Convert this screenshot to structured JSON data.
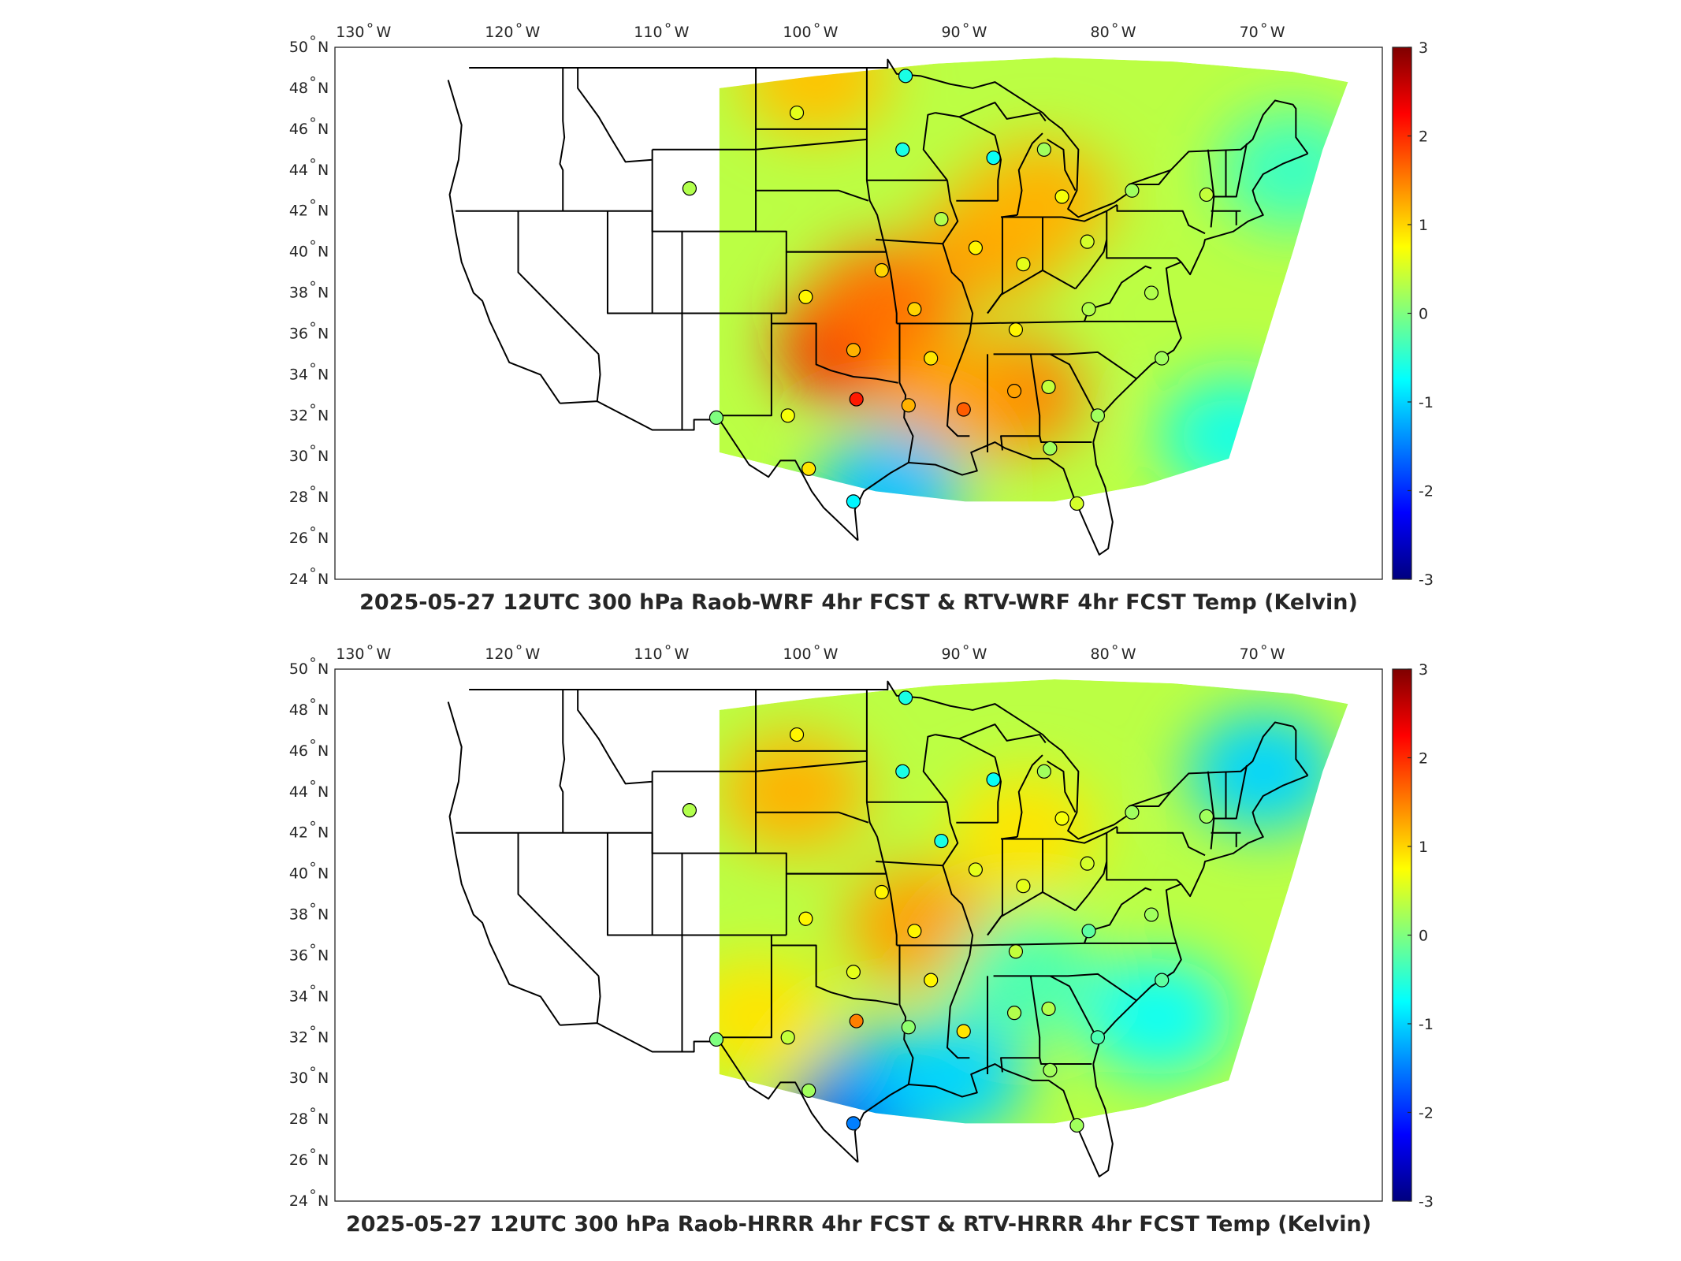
{
  "colormap": [
    "#00007f",
    "#0000ff",
    "#007fff",
    "#00ffff",
    "#7fff7f",
    "#ffff00",
    "#ff7f00",
    "#ff0000",
    "#7f0000"
  ],
  "lon_ticks": [
    {
      "v": "130",
      "u": "W"
    },
    {
      "v": "120",
      "u": "W"
    },
    {
      "v": "110",
      "u": "W"
    },
    {
      "v": "100",
      "u": "W"
    },
    {
      "v": "90",
      "u": "W"
    },
    {
      "v": "80",
      "u": "W"
    },
    {
      "v": "70",
      "u": "W"
    }
  ],
  "lat_ticks": [
    {
      "v": "50",
      "u": "N"
    },
    {
      "v": "48",
      "u": "N"
    },
    {
      "v": "46",
      "u": "N"
    },
    {
      "v": "44",
      "u": "N"
    },
    {
      "v": "42",
      "u": "N"
    },
    {
      "v": "40",
      "u": "N"
    },
    {
      "v": "38",
      "u": "N"
    },
    {
      "v": "36",
      "u": "N"
    },
    {
      "v": "34",
      "u": "N"
    },
    {
      "v": "32",
      "u": "N"
    },
    {
      "v": "30",
      "u": "N"
    },
    {
      "v": "28",
      "u": "N"
    },
    {
      "v": "26",
      "u": "N"
    },
    {
      "v": "24",
      "u": "N"
    }
  ],
  "colorbar_ticks": [
    "3",
    "2",
    "1",
    "0",
    "-1",
    "-2",
    "-3"
  ],
  "colorbar_range": [
    -3,
    3
  ],
  "panels": [
    {
      "title": "2025-05-27 12UTC 300 hPa Raob-WRF 4hr FCST & RTV-WRF 4hr FCST Temp (Kelvin)",
      "regions": [
        {
          "lon": -97.5,
          "lat": 35.5,
          "value": 2.3
        },
        {
          "lon": -95.5,
          "lat": 37.5,
          "value": 1.6
        },
        {
          "lon": -88,
          "lat": 40.5,
          "value": 1.3
        },
        {
          "lon": -85,
          "lat": 42.5,
          "value": 1.2
        },
        {
          "lon": -87,
          "lat": 33,
          "value": 1.5
        },
        {
          "lon": -91,
          "lat": 33,
          "value": 1.3
        },
        {
          "lon": -100,
          "lat": 48.5,
          "value": 1.1
        },
        {
          "lon": -95,
          "lat": 28.5,
          "value": -1.1
        },
        {
          "lon": -72,
          "lat": 31,
          "value": -0.6
        },
        {
          "lon": -68,
          "lat": 44,
          "value": -0.4
        }
      ],
      "stations": [
        {
          "lon": -108.5,
          "lat": 43.1,
          "value": 0.3
        },
        {
          "lon": -94.0,
          "lat": 48.6,
          "value": -0.6
        },
        {
          "lon": -101.3,
          "lat": 46.8,
          "value": 0.6
        },
        {
          "lon": -94.2,
          "lat": 45.0,
          "value": -0.6
        },
        {
          "lon": -88.1,
          "lat": 44.6,
          "value": -0.7
        },
        {
          "lon": -84.7,
          "lat": 45.0,
          "value": 0.2
        },
        {
          "lon": -83.5,
          "lat": 42.7,
          "value": 0.7
        },
        {
          "lon": -91.6,
          "lat": 41.6,
          "value": 0.3
        },
        {
          "lon": -89.3,
          "lat": 40.2,
          "value": 0.8
        },
        {
          "lon": -86.1,
          "lat": 39.4,
          "value": 0.6
        },
        {
          "lon": -81.8,
          "lat": 40.5,
          "value": 0.5
        },
        {
          "lon": -78.8,
          "lat": 43.0,
          "value": 0.2
        },
        {
          "lon": -73.8,
          "lat": 42.8,
          "value": 0.4
        },
        {
          "lon": -95.6,
          "lat": 39.1,
          "value": 1.0
        },
        {
          "lon": -100.7,
          "lat": 37.8,
          "value": 0.8
        },
        {
          "lon": -93.4,
          "lat": 37.2,
          "value": 1.0
        },
        {
          "lon": -97.5,
          "lat": 35.2,
          "value": 1.2
        },
        {
          "lon": -92.3,
          "lat": 34.8,
          "value": 0.9
        },
        {
          "lon": -86.6,
          "lat": 36.2,
          "value": 0.8
        },
        {
          "lon": -81.7,
          "lat": 37.2,
          "value": 0.3
        },
        {
          "lon": -97.3,
          "lat": 32.8,
          "value": 2.1
        },
        {
          "lon": -101.9,
          "lat": 32.0,
          "value": 0.7
        },
        {
          "lon": -93.8,
          "lat": 32.5,
          "value": 1.2
        },
        {
          "lon": -90.1,
          "lat": 32.3,
          "value": 1.7
        },
        {
          "lon": -86.7,
          "lat": 33.2,
          "value": 1.3
        },
        {
          "lon": -84.4,
          "lat": 33.4,
          "value": 0.4
        },
        {
          "lon": -81.1,
          "lat": 32.0,
          "value": 0.2
        },
        {
          "lon": -106.7,
          "lat": 31.9,
          "value": 0.0
        },
        {
          "lon": -100.5,
          "lat": 29.4,
          "value": 0.9
        },
        {
          "lon": -97.5,
          "lat": 27.8,
          "value": -0.8
        },
        {
          "lon": -84.3,
          "lat": 30.4,
          "value": 0.2
        },
        {
          "lon": -82.5,
          "lat": 27.7,
          "value": 0.5
        },
        {
          "lon": -77.5,
          "lat": 38.0,
          "value": 0.3
        },
        {
          "lon": -76.8,
          "lat": 34.8,
          "value": 0.2
        }
      ]
    },
    {
      "title": "2025-05-27 12UTC 300 hPa Raob-HRRR 4hr FCST & RTV-HRRR 4hr FCST Temp (Kelvin)",
      "regions": [
        {
          "lon": -97,
          "lat": 28,
          "value": -2.6
        },
        {
          "lon": -95,
          "lat": 29.5,
          "value": -1.4
        },
        {
          "lon": -91,
          "lat": 30,
          "value": -1.0
        },
        {
          "lon": -70,
          "lat": 45,
          "value": -1.0
        },
        {
          "lon": -77,
          "lat": 33,
          "value": -0.7
        },
        {
          "lon": -101.5,
          "lat": 44,
          "value": 1.2
        },
        {
          "lon": -93,
          "lat": 37.5,
          "value": 1.3
        },
        {
          "lon": -104,
          "lat": 33,
          "value": 0.9
        },
        {
          "lon": -86,
          "lat": 42,
          "value": 0.9
        },
        {
          "lon": -86,
          "lat": 35,
          "value": -0.3
        }
      ],
      "stations": [
        {
          "lon": -108.5,
          "lat": 43.1,
          "value": 0.3
        },
        {
          "lon": -94.0,
          "lat": 48.6,
          "value": -0.6
        },
        {
          "lon": -101.3,
          "lat": 46.8,
          "value": 0.8
        },
        {
          "lon": -94.2,
          "lat": 45.0,
          "value": -0.6
        },
        {
          "lon": -88.1,
          "lat": 44.6,
          "value": -0.7
        },
        {
          "lon": -84.7,
          "lat": 45.0,
          "value": 0.2
        },
        {
          "lon": -83.5,
          "lat": 42.7,
          "value": 0.7
        },
        {
          "lon": -91.6,
          "lat": 41.6,
          "value": -0.6
        },
        {
          "lon": -89.3,
          "lat": 40.2,
          "value": 0.6
        },
        {
          "lon": -86.1,
          "lat": 39.4,
          "value": 0.6
        },
        {
          "lon": -81.8,
          "lat": 40.5,
          "value": 0.5
        },
        {
          "lon": -78.8,
          "lat": 43.0,
          "value": 0.2
        },
        {
          "lon": -73.8,
          "lat": 42.8,
          "value": 0.2
        },
        {
          "lon": -95.6,
          "lat": 39.1,
          "value": 0.8
        },
        {
          "lon": -100.7,
          "lat": 37.8,
          "value": 0.8
        },
        {
          "lon": -93.4,
          "lat": 37.2,
          "value": 0.8
        },
        {
          "lon": -97.5,
          "lat": 35.2,
          "value": 0.6
        },
        {
          "lon": -92.3,
          "lat": 34.8,
          "value": 0.8
        },
        {
          "lon": -86.6,
          "lat": 36.2,
          "value": 0.4
        },
        {
          "lon": -81.7,
          "lat": 37.2,
          "value": -0.2
        },
        {
          "lon": -97.3,
          "lat": 32.8,
          "value": 1.5
        },
        {
          "lon": -101.9,
          "lat": 32.0,
          "value": 0.4
        },
        {
          "lon": -93.8,
          "lat": 32.5,
          "value": 0.1
        },
        {
          "lon": -90.1,
          "lat": 32.3,
          "value": 0.9
        },
        {
          "lon": -86.7,
          "lat": 33.2,
          "value": 0.3
        },
        {
          "lon": -84.4,
          "lat": 33.4,
          "value": 0.3
        },
        {
          "lon": -81.1,
          "lat": 32.0,
          "value": -0.3
        },
        {
          "lon": -106.7,
          "lat": 31.9,
          "value": 0.0
        },
        {
          "lon": -100.5,
          "lat": 29.4,
          "value": 0.2
        },
        {
          "lon": -97.5,
          "lat": 27.8,
          "value": -1.5
        },
        {
          "lon": -84.3,
          "lat": 30.4,
          "value": 0.2
        },
        {
          "lon": -82.5,
          "lat": 27.7,
          "value": 0.2
        },
        {
          "lon": -77.5,
          "lat": 38.0,
          "value": 0.2
        },
        {
          "lon": -76.8,
          "lat": 34.8,
          "value": -0.2
        }
      ]
    }
  ]
}
